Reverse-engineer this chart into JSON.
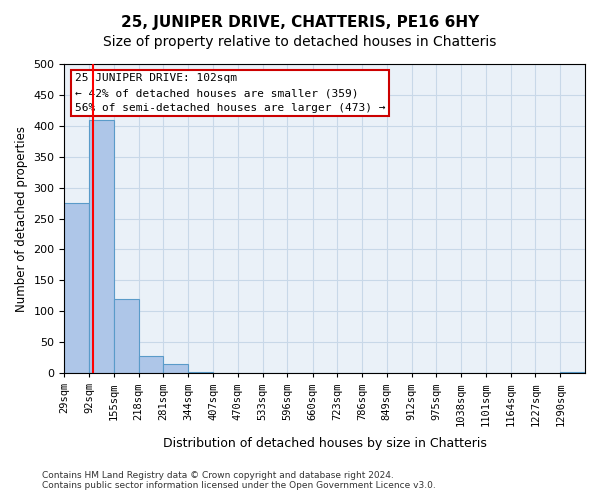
{
  "title": "25, JUNIPER DRIVE, CHATTERIS, PE16 6HY",
  "subtitle": "Size of property relative to detached houses in Chatteris",
  "xlabel": "Distribution of detached houses by size in Chatteris",
  "ylabel": "Number of detached properties",
  "bar_labels": [
    "29sqm",
    "92sqm",
    "155sqm",
    "218sqm",
    "281sqm",
    "344sqm",
    "407sqm",
    "470sqm",
    "533sqm",
    "596sqm",
    "660sqm",
    "723sqm",
    "786sqm",
    "849sqm",
    "912sqm",
    "975sqm",
    "1038sqm",
    "1101sqm",
    "1164sqm",
    "1227sqm",
    "1290sqm"
  ],
  "bar_values": [
    275,
    410,
    120,
    28,
    15,
    2,
    0,
    0,
    0,
    0,
    0,
    0,
    0,
    0,
    0,
    0,
    0,
    0,
    0,
    0,
    2
  ],
  "bar_color": "#aec6e8",
  "bar_edge_color": "#5a9bc9",
  "grid_color": "#c8d8e8",
  "annotation_text": "25 JUNIPER DRIVE: 102sqm\n← 42% of detached houses are smaller (359)\n56% of semi-detached houses are larger (473) →",
  "annotation_box_color": "#ffffff",
  "annotation_box_edge": "#cc0000",
  "red_line_x": 102,
  "bin_edges": [
    29,
    92,
    155,
    218,
    281,
    344,
    407,
    470,
    533,
    596,
    660,
    723,
    786,
    849,
    912,
    975,
    1038,
    1101,
    1164,
    1227,
    1290,
    1353
  ],
  "ylim": [
    0,
    500
  ],
  "yticks": [
    0,
    50,
    100,
    150,
    200,
    250,
    300,
    350,
    400,
    450,
    500
  ],
  "footer_line1": "Contains HM Land Registry data © Crown copyright and database right 2024.",
  "footer_line2": "Contains public sector information licensed under the Open Government Licence v3.0.",
  "bg_color": "#ffffff",
  "axes_bg_color": "#eaf1f8",
  "title_fontsize": 11,
  "subtitle_fontsize": 10
}
